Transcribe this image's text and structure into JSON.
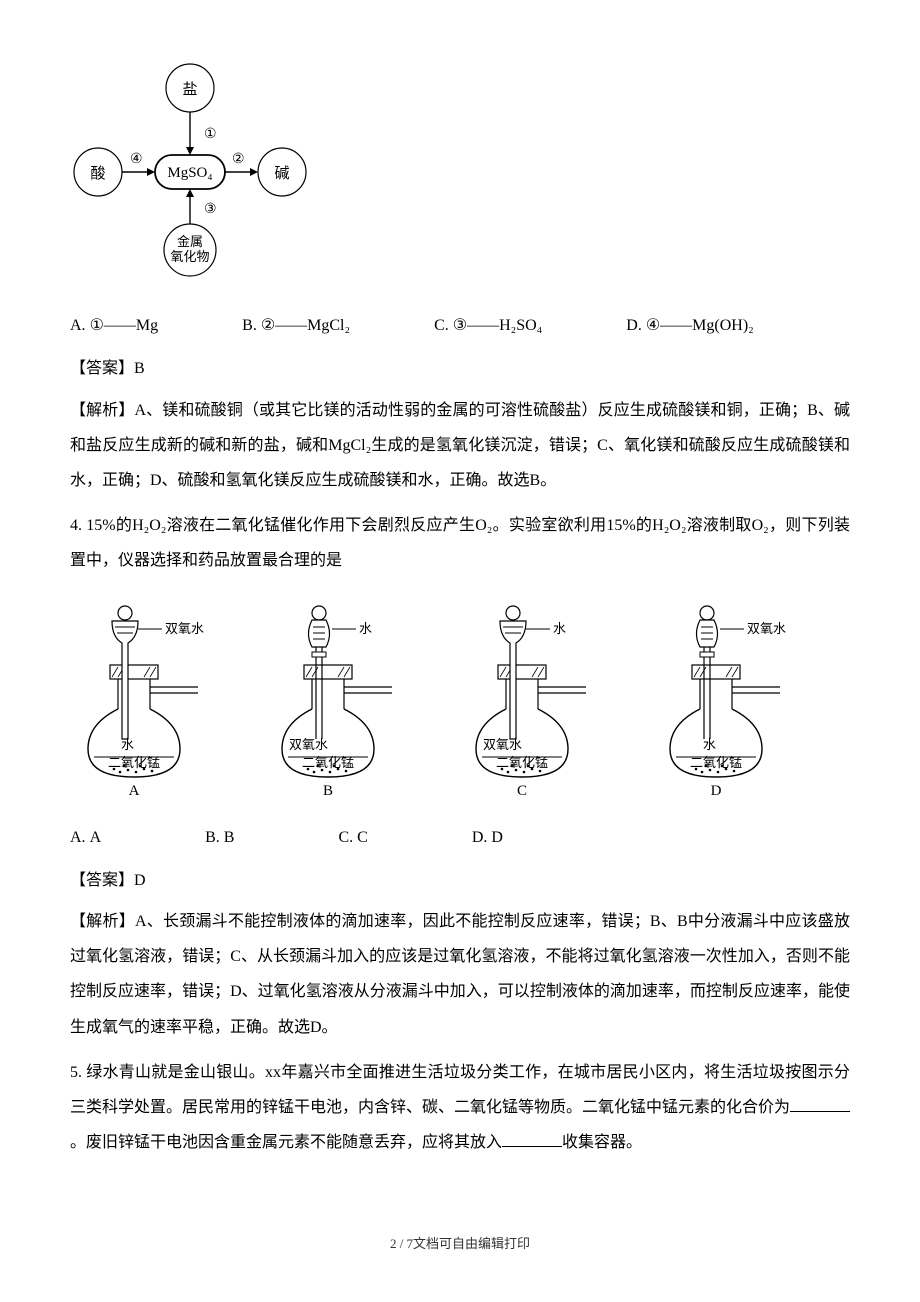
{
  "diagram1": {
    "center": "MgSO₄",
    "top": {
      "label": "盐",
      "arrow": "①"
    },
    "right": {
      "label": "碱",
      "arrow": "②"
    },
    "bottom": {
      "label": "金属\n氧化物",
      "arrow": "③"
    },
    "left": {
      "label": "酸",
      "arrow": "④"
    },
    "node_fill": "#ffffff",
    "node_stroke": "#000000",
    "node_stroke_width": 1.2,
    "center_stroke_width": 1.8,
    "arrow_color": "#000000",
    "font_size": 14
  },
  "q3_options": {
    "A": "①——Mg",
    "B": "②——MgCl₂",
    "C": "③——H₂SO₄",
    "D": "④——Mg(OH)₂"
  },
  "q3_answer": "【答案】B",
  "q3_explain": "【解析】A、镁和硫酸铜（或其它比镁的活动性弱的金属的可溶性硫酸盐）反应生成硫酸镁和铜，正确；B、碱和盐反应生成新的碱和新的盐，碱和MgCl₂生成的是氢氧化镁沉淀，错误；C、氧化镁和硫酸反应生成硫酸镁和水，正确；D、硫酸和氢氧化镁反应生成硫酸镁和水，正确。故选B。",
  "q4_text": "4. 15%的H₂O₂溶液在二氧化锰催化作用下会剧烈反应产生O₂。实验室欲利用15%的H₂O₂溶液制取O₂，则下列装置中，仪器选择和药品放置最合理的是",
  "flasks": {
    "funnel_type": [
      "long-stem",
      "separating",
      "long-stem",
      "separating"
    ],
    "funnel_label": [
      "双氧水",
      "水",
      "水",
      "双氧水"
    ],
    "flask_upper": [
      "水",
      "双氧水",
      "双氧水",
      "水"
    ],
    "flask_lower": [
      "二氧化锰",
      "二氧化锰",
      "二氧化锰",
      "二氧化锰"
    ],
    "caption": [
      "A",
      "B",
      "C",
      "D"
    ],
    "stroke": "#000000",
    "fill": "#ffffff",
    "hatch": "#000000",
    "label_fontsize": 13
  },
  "q4_options_line": "A. A    B. B    C. C    D. D",
  "q4_opts": {
    "A": "A",
    "B": "B",
    "C": "C",
    "D": "D"
  },
  "q4_answer": "【答案】D",
  "q4_explain": "【解析】A、长颈漏斗不能控制液体的滴加速率，因此不能控制反应速率，错误；B、B中分液漏斗中应该盛放过氧化氢溶液，错误；C、从长颈漏斗加入的应该是过氧化氢溶液，不能将过氧化氢溶液一次性加入，否则不能控制反应速率，错误；D、过氧化氢溶液从分液漏斗中加入，可以控制液体的滴加速率，而控制反应速率，能使生成氧气的速率平稳，正确。故选D。",
  "q5_text_1": "5. 绿水青山就是金山银山。xx年嘉兴市全面推进生活垃圾分类工作，在城市居民小区内，将生活垃圾按图示分三类科学处置。居民常用的锌锰干电池，内含锌、碳、二氧化锰等物质。二氧化锰中锰元素的化合价为",
  "q5_text_2": "。废旧锌锰干电池因含重金属元素不能随意丢弃，应将其放入",
  "q5_text_3": "收集容器。",
  "footer": "2 / 7文档可自由编辑打印"
}
